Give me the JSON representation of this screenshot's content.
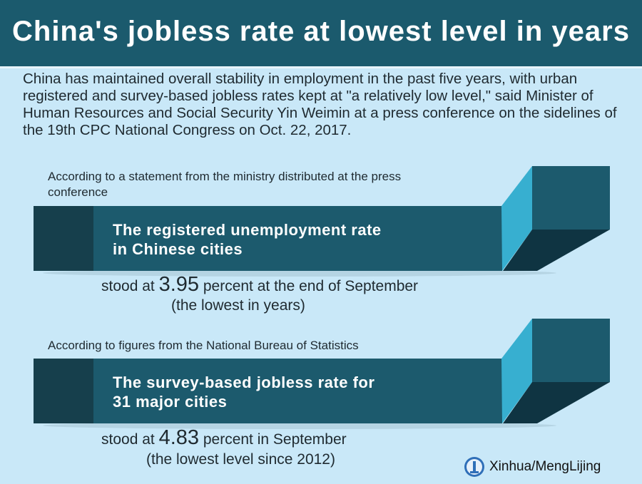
{
  "title": "China's jobless rate at lowest level in years",
  "intro": "China has maintained overall stability in employment in the past five years, with urban registered and survey-based jobless rates kept at \"a relatively low level,\" said Minister of Human Resources and Social Security Yin Weimin at a press conference on the sidelines of the 19th CPC National Congress on Oct. 22, 2017.",
  "sections": [
    {
      "source": "According to a statement from the ministry distributed at the press conference",
      "label_line1": "The registered unemployment rate",
      "label_line2": "in Chinese cities",
      "stat_prefix": "stood at ",
      "stat_value": "3.95",
      "stat_suffix": " percent at the end of September",
      "stat_note": "(the lowest in years)"
    },
    {
      "source": "According to figures from the National Bureau of Statistics",
      "label_line1": "The survey-based jobless rate for",
      "label_line2": " 31 major cities",
      "stat_prefix": "stood at ",
      "stat_value": "4.83",
      "stat_suffix": " percent in September",
      "stat_note": "(the lowest level since 2012)"
    }
  ],
  "credit": "Xinhua/MengLijing",
  "colors": {
    "header": "#1b5a6d",
    "background": "#c9e8f8",
    "bar": "#1c5a6d",
    "bar_dark": "#163f4c",
    "side": "#37afd0",
    "shadow": "#0f3442"
  }
}
